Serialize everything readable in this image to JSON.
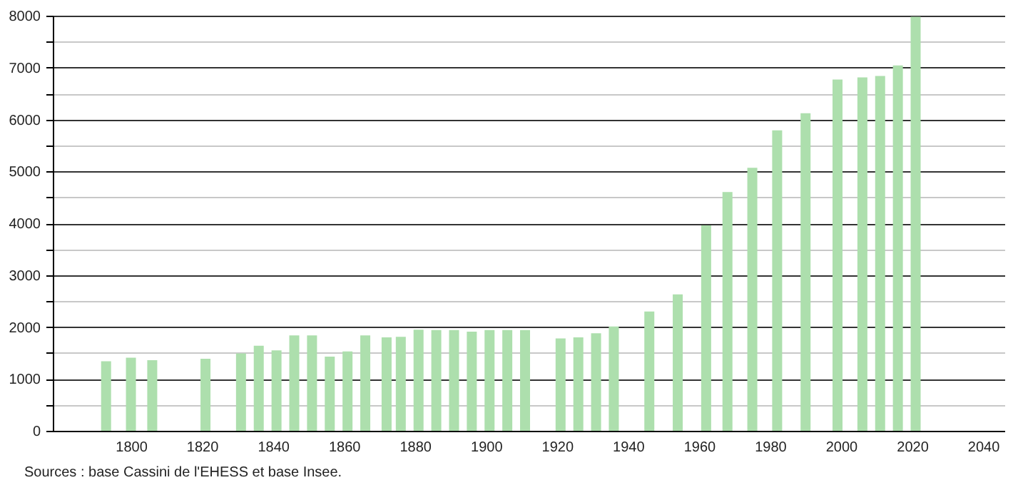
{
  "chart_data": {
    "type": "bar",
    "x": [
      1793,
      1800,
      1806,
      1821,
      1831,
      1836,
      1841,
      1846,
      1851,
      1856,
      1861,
      1866,
      1872,
      1876,
      1881,
      1886,
      1891,
      1896,
      1901,
      1906,
      1911,
      1921,
      1926,
      1931,
      1936,
      1946,
      1954,
      1962,
      1968,
      1975,
      1982,
      1990,
      1999,
      2006,
      2011,
      2016,
      2021
    ],
    "values": [
      1340,
      1410,
      1360,
      1390,
      1490,
      1640,
      1550,
      1840,
      1840,
      1430,
      1530,
      1840,
      1800,
      1810,
      1950,
      1940,
      1940,
      1910,
      1940,
      1940,
      1940,
      1780,
      1800,
      1880,
      2010,
      2300,
      2630,
      3960,
      4600,
      5070,
      5790,
      6120,
      6770,
      6810,
      6840,
      7040,
      7980
    ],
    "color": "#addfad",
    "xlim": [
      1780,
      2044
    ],
    "xticks": [
      1800,
      1820,
      1840,
      1860,
      1880,
      1900,
      1920,
      1940,
      1960,
      1980,
      2000,
      2020,
      2040
    ],
    "ylim": [
      0,
      8000
    ],
    "yticks": [
      0,
      {
        "value": 500,
        "label": null
      },
      1000,
      {
        "value": 1500,
        "label": null
      },
      2000,
      {
        "value": 2500,
        "label": null
      },
      3000,
      {
        "value": 3500,
        "label": null
      },
      4000,
      {
        "value": 4500,
        "label": null
      },
      5000,
      {
        "value": 5500,
        "label": null
      },
      6000,
      {
        "value": 6500,
        "label": null
      },
      7000,
      {
        "value": 7500,
        "label": null
      },
      8000
    ],
    "grid": "y",
    "annotations": [
      "Sources : base Cassini de l'EHESS et base Insee."
    ]
  }
}
